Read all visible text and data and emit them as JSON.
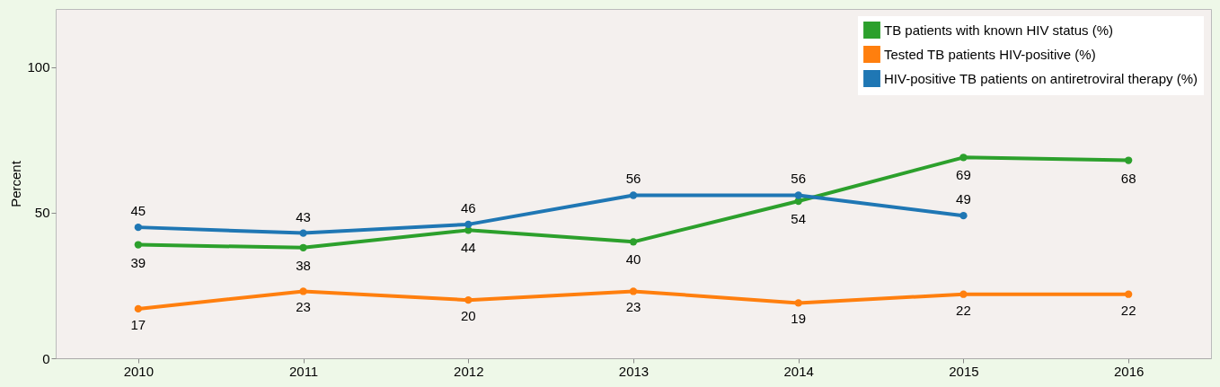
{
  "chart_data": {
    "type": "line",
    "ylabel": "Percent",
    "categories": [
      "2010",
      "2011",
      "2012",
      "2013",
      "2014",
      "2015",
      "2016"
    ],
    "series": [
      {
        "name": "TB patients with known HIV status (%)",
        "color": "#2ca02c",
        "values": [
          39,
          38,
          44,
          40,
          54,
          69,
          68
        ]
      },
      {
        "name": "Tested TB patients HIV-positive (%)",
        "color": "#ff7f0e",
        "values": [
          17,
          23,
          20,
          23,
          19,
          22,
          22
        ]
      },
      {
        "name": "HIV-positive TB patients on antiretroviral therapy (%)",
        "color": "#1f77b4",
        "values": [
          45,
          43,
          46,
          56,
          56,
          49,
          null
        ]
      }
    ],
    "ylim": [
      0,
      120
    ],
    "yticks": [
      0,
      50,
      100
    ],
    "grid": false,
    "legend": "top right",
    "marker": "circle",
    "line_style": "solid",
    "data_labels": true
  }
}
